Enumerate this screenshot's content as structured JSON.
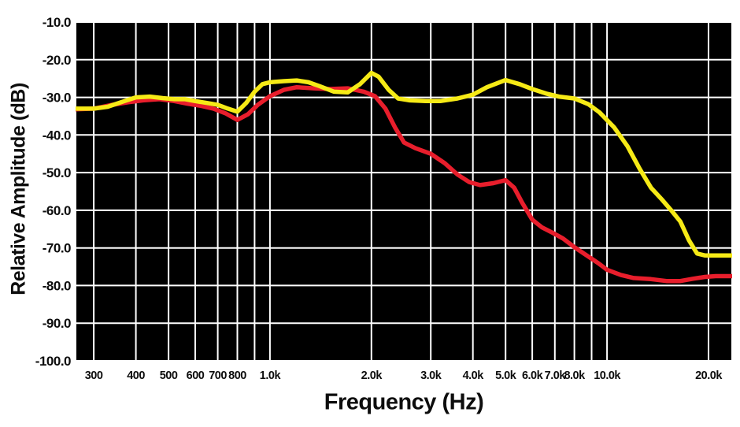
{
  "chart_data": {
    "type": "line",
    "title": "",
    "xlabel": "Frequency (Hz)",
    "ylabel": "Relative Amplitude (dB)",
    "x_scale": "log",
    "xlim": [
      265,
      23500
    ],
    "ylim": [
      -100,
      -10
    ],
    "grid": true,
    "legend": "none",
    "background": "#000000",
    "grid_color": "#ffffff",
    "x_gridlines": [
      300,
      400,
      500,
      600,
      700,
      800,
      900,
      1000,
      2000,
      3000,
      4000,
      5000,
      6000,
      7000,
      8000,
      9000,
      10000,
      20000
    ],
    "y_gridlines": [
      -10,
      -20,
      -30,
      -40,
      -50,
      -60,
      -70,
      -80,
      -90,
      -100
    ],
    "x_ticks": [
      {
        "value": 300,
        "label": "300"
      },
      {
        "value": 400,
        "label": "400"
      },
      {
        "value": 500,
        "label": "500"
      },
      {
        "value": 600,
        "label": "600"
      },
      {
        "value": 700,
        "label": "700"
      },
      {
        "value": 800,
        "label": "800"
      },
      {
        "value": 1000,
        "label": "1.0k"
      },
      {
        "value": 2000,
        "label": "2.0k"
      },
      {
        "value": 3000,
        "label": "3.0k"
      },
      {
        "value": 4000,
        "label": "4.0k"
      },
      {
        "value": 5000,
        "label": "5.0k"
      },
      {
        "value": 6000,
        "label": "6.0k"
      },
      {
        "value": 7000,
        "label": "7.0k"
      },
      {
        "value": 8000,
        "label": "8.0k"
      },
      {
        "value": 10000,
        "label": "10.0k"
      },
      {
        "value": 20000,
        "label": "20.0k"
      }
    ],
    "y_ticks": [
      {
        "value": -10,
        "label": "-10.0"
      },
      {
        "value": -20,
        "label": "-20.0"
      },
      {
        "value": -30,
        "label": "-30.0"
      },
      {
        "value": -40,
        "label": "-40.0"
      },
      {
        "value": -50,
        "label": "-50.0"
      },
      {
        "value": -60,
        "label": "-60.0"
      },
      {
        "value": -70,
        "label": "-70.0"
      },
      {
        "value": -80,
        "label": "-80.0"
      },
      {
        "value": -90,
        "label": "-90.0"
      },
      {
        "value": -100,
        "label": "-100.0"
      }
    ],
    "series": [
      {
        "name": "red-curve",
        "color": "#e81e2c",
        "points": [
          [
            265,
            -33.2
          ],
          [
            300,
            -33
          ],
          [
            340,
            -32
          ],
          [
            380,
            -31.3
          ],
          [
            420,
            -30.8
          ],
          [
            470,
            -30.5
          ],
          [
            520,
            -31
          ],
          [
            570,
            -31.7
          ],
          [
            620,
            -32.2
          ],
          [
            680,
            -33
          ],
          [
            740,
            -34.3
          ],
          [
            800,
            -36
          ],
          [
            860,
            -34.5
          ],
          [
            920,
            -32
          ],
          [
            1000,
            -29.7
          ],
          [
            1100,
            -28
          ],
          [
            1200,
            -27.3
          ],
          [
            1350,
            -27.6
          ],
          [
            1500,
            -27.8
          ],
          [
            1700,
            -27.6
          ],
          [
            1900,
            -28.5
          ],
          [
            2050,
            -29.7
          ],
          [
            2200,
            -33
          ],
          [
            2350,
            -38
          ],
          [
            2500,
            -42
          ],
          [
            2700,
            -43.5
          ],
          [
            3000,
            -45
          ],
          [
            3300,
            -47.5
          ],
          [
            3600,
            -50.5
          ],
          [
            3900,
            -52.5
          ],
          [
            4200,
            -53.3
          ],
          [
            4600,
            -52.8
          ],
          [
            5000,
            -52
          ],
          [
            5300,
            -54
          ],
          [
            5600,
            -58
          ],
          [
            6000,
            -62.5
          ],
          [
            6400,
            -64.5
          ],
          [
            6900,
            -66
          ],
          [
            7400,
            -67.5
          ],
          [
            8000,
            -69.8
          ],
          [
            8700,
            -72
          ],
          [
            9400,
            -74
          ],
          [
            10000,
            -75.8
          ],
          [
            11000,
            -77.2
          ],
          [
            12000,
            -78
          ],
          [
            13500,
            -78.3
          ],
          [
            15000,
            -78.8
          ],
          [
            16500,
            -78.8
          ],
          [
            18000,
            -78.2
          ],
          [
            19500,
            -77.7
          ],
          [
            21000,
            -77.5
          ],
          [
            23500,
            -77.5
          ]
        ]
      },
      {
        "name": "yellow-curve",
        "color": "#f6ea16",
        "points": [
          [
            265,
            -33
          ],
          [
            300,
            -33
          ],
          [
            330,
            -32.5
          ],
          [
            370,
            -31
          ],
          [
            400,
            -30
          ],
          [
            440,
            -29.8
          ],
          [
            480,
            -30.2
          ],
          [
            520,
            -30.5
          ],
          [
            560,
            -30.5
          ],
          [
            600,
            -31
          ],
          [
            650,
            -31.5
          ],
          [
            700,
            -32
          ],
          [
            750,
            -33
          ],
          [
            800,
            -33.8
          ],
          [
            850,
            -31.5
          ],
          [
            900,
            -28.5
          ],
          [
            950,
            -26.5
          ],
          [
            1000,
            -26
          ],
          [
            1100,
            -25.7
          ],
          [
            1200,
            -25.5
          ],
          [
            1300,
            -26
          ],
          [
            1400,
            -27
          ],
          [
            1550,
            -28.5
          ],
          [
            1700,
            -28.7
          ],
          [
            1850,
            -26.5
          ],
          [
            2000,
            -23.5
          ],
          [
            2100,
            -24.5
          ],
          [
            2250,
            -28
          ],
          [
            2400,
            -30.3
          ],
          [
            2600,
            -30.8
          ],
          [
            2900,
            -31
          ],
          [
            3200,
            -31
          ],
          [
            3600,
            -30.3
          ],
          [
            4000,
            -29.3
          ],
          [
            4400,
            -27.3
          ],
          [
            5000,
            -25.4
          ],
          [
            5500,
            -26.5
          ],
          [
            6000,
            -27.8
          ],
          [
            6600,
            -29
          ],
          [
            7200,
            -29.8
          ],
          [
            8000,
            -30.3
          ],
          [
            8800,
            -31.8
          ],
          [
            9500,
            -34
          ],
          [
            10500,
            -38
          ],
          [
            11500,
            -43
          ],
          [
            12500,
            -49
          ],
          [
            13500,
            -54
          ],
          [
            14500,
            -57
          ],
          [
            15500,
            -60
          ],
          [
            16500,
            -63
          ],
          [
            17500,
            -68
          ],
          [
            18500,
            -71.5
          ],
          [
            19500,
            -72
          ],
          [
            21000,
            -72
          ],
          [
            23500,
            -72
          ]
        ]
      }
    ]
  }
}
